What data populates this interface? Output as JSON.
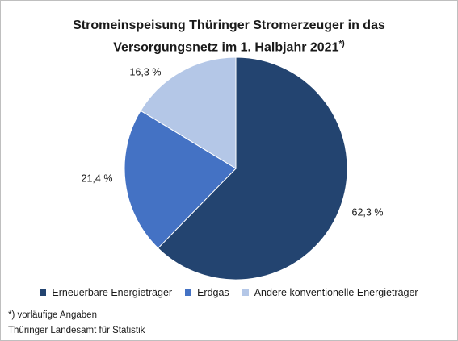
{
  "chart_data": {
    "type": "pie",
    "title_line1": "Stromeinspeisung Thüringer Stromerzeuger in das",
    "title_line2": "Versorgungsnetz im 1. Halbjahr 2021",
    "title_sup": "*)",
    "categories": [
      "Erneuerbare Energieträger",
      "Erdgas",
      "Andere konventionelle Energieträger"
    ],
    "values": [
      62.3,
      21.4,
      16.3
    ],
    "labels": [
      "62,3 %",
      "21,4 %",
      "16,3 %"
    ],
    "colors": [
      "#234470",
      "#4472c4",
      "#b4c7e7"
    ],
    "legend_position": "bottom"
  },
  "footnotes": {
    "note": "*) vorläufige Angaben",
    "source": "Thüringer Landesamt für Statistik"
  }
}
